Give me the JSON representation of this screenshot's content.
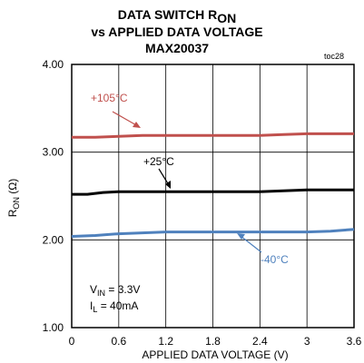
{
  "chart_data": {
    "type": "line",
    "title_line1": "DATA SWITCH R",
    "title_line1_sub": "ON",
    "title_line2": "vs APPLIED DATA VOLTAGE",
    "title_line3": "MAX20037",
    "figure_id": "toc28",
    "xlabel": "APPLIED DATA VOLTAGE (V)",
    "ylabel_main": "R",
    "ylabel_sub": "ON",
    "ylabel_unit": " (Ω)",
    "x_ticks": [
      "0",
      "0.6",
      "1.2",
      "1.8",
      "2.4",
      "3",
      "3.6"
    ],
    "y_ticks": [
      "1.00",
      "2.00",
      "3.00",
      "4.00"
    ],
    "xlim": [
      0,
      3.6
    ],
    "ylim": [
      1.0,
      4.0
    ],
    "grid": true,
    "conditions": {
      "vin_main": "V",
      "vin_sub": "IN",
      "vin_value": " = 3.3V",
      "il_main": "I",
      "il_sub": "L",
      "il_value": " = 40mA"
    },
    "series": [
      {
        "name": "+105°C",
        "color": "#c0504d",
        "x": [
          0,
          0.3,
          0.6,
          0.9,
          1.2,
          1.5,
          1.8,
          2.1,
          2.4,
          2.7,
          3.0,
          3.3,
          3.6
        ],
        "y": [
          3.17,
          3.17,
          3.18,
          3.19,
          3.19,
          3.19,
          3.19,
          3.19,
          3.19,
          3.2,
          3.21,
          3.21,
          3.21
        ]
      },
      {
        "name": "+25°C",
        "color": "#000000",
        "x": [
          0,
          0.2,
          0.4,
          0.6,
          0.9,
          1.2,
          1.5,
          1.8,
          2.1,
          2.4,
          2.7,
          3.0,
          3.3,
          3.6
        ],
        "y": [
          2.52,
          2.52,
          2.54,
          2.55,
          2.55,
          2.55,
          2.55,
          2.55,
          2.55,
          2.55,
          2.56,
          2.57,
          2.57,
          2.57
        ]
      },
      {
        "name": "-40°C",
        "color": "#4f81bd",
        "x": [
          0,
          0.3,
          0.6,
          0.9,
          1.2,
          1.5,
          1.8,
          2.1,
          2.4,
          2.7,
          3.0,
          3.3,
          3.6
        ],
        "y": [
          2.04,
          2.05,
          2.07,
          2.08,
          2.09,
          2.09,
          2.09,
          2.09,
          2.09,
          2.09,
          2.09,
          2.1,
          2.12
        ]
      }
    ]
  }
}
